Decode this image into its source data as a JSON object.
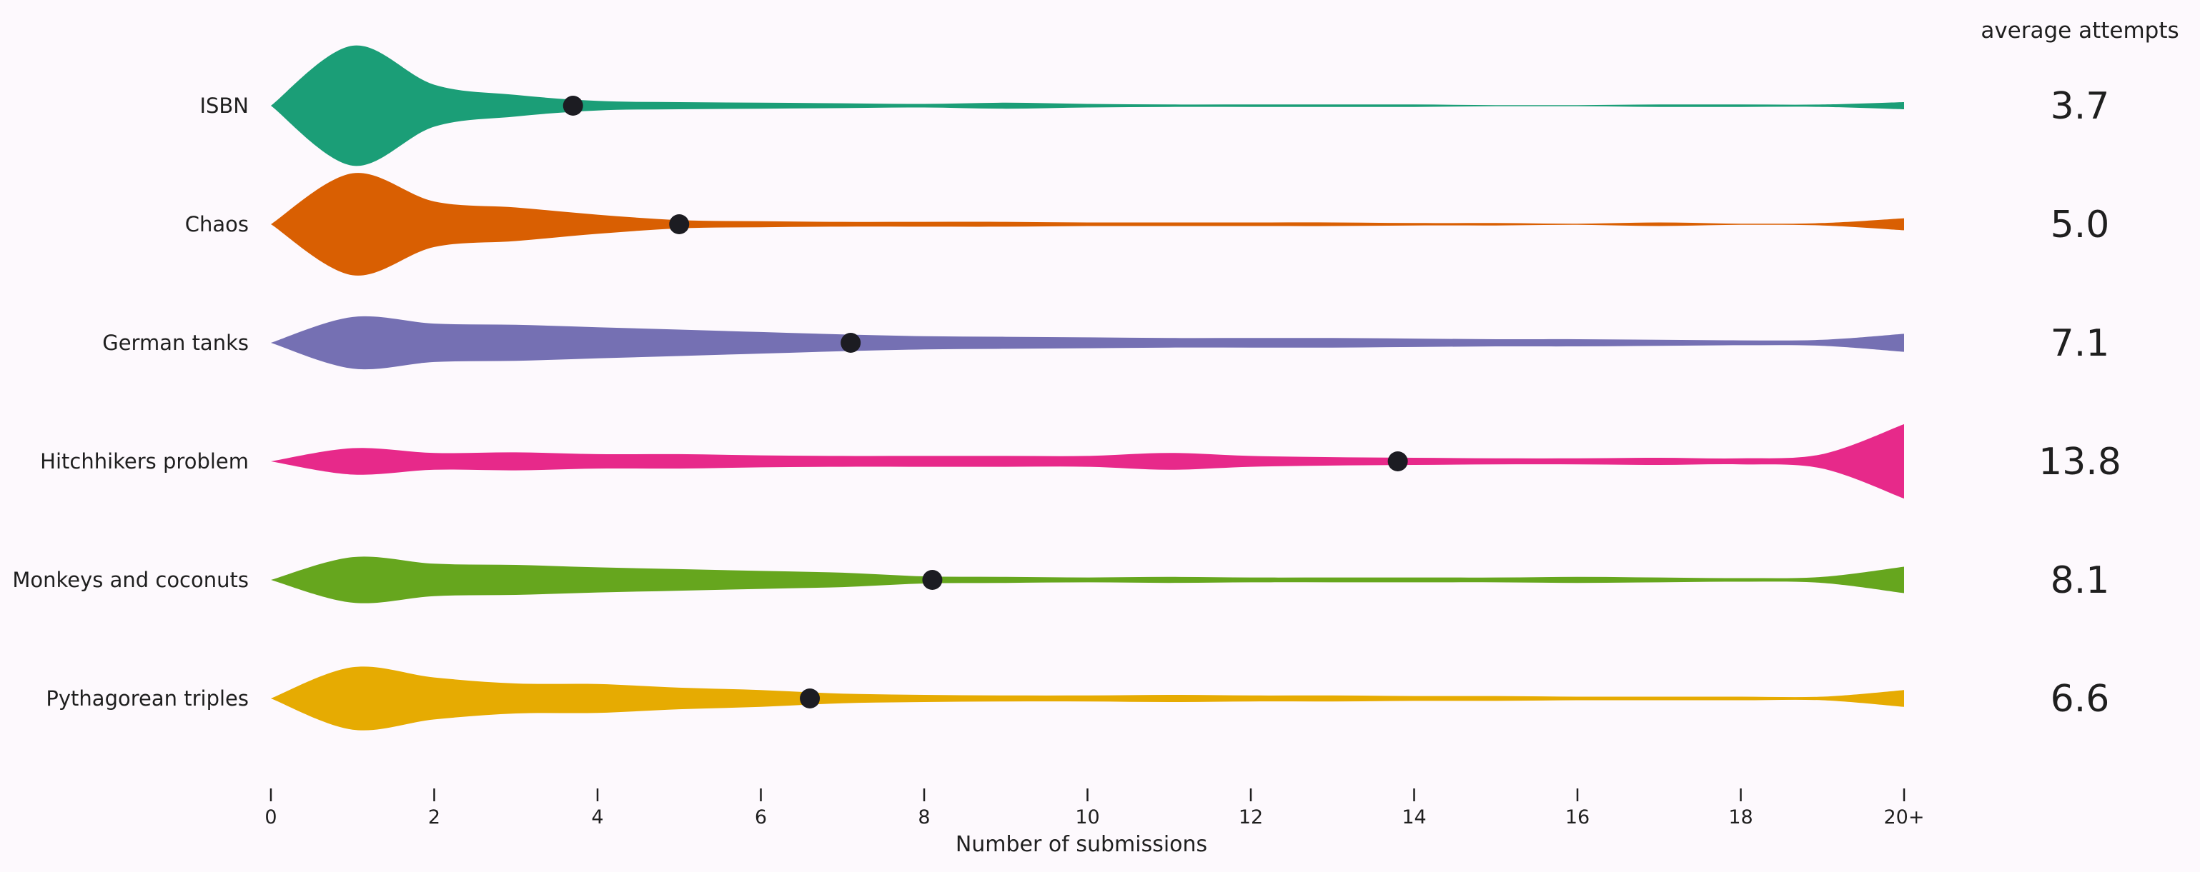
{
  "chart_data": {
    "type": "violin",
    "orientation": "horizontal",
    "xlabel": "Number of submissions",
    "xlim": [
      0,
      20
    ],
    "x_ticks": [
      0,
      2,
      4,
      6,
      8,
      10,
      12,
      14,
      16,
      18,
      20
    ],
    "x_tick_labels": [
      "0",
      "2",
      "4",
      "6",
      "8",
      "10",
      "12",
      "14",
      "16",
      "18",
      "20+"
    ],
    "average_header": "average attempts",
    "series": [
      {
        "name": "ISBN",
        "color": "#1b9e77",
        "average": 3.7,
        "average_label": "3.7",
        "density": [
          0,
          1.0,
          0.35,
          0.18,
          0.08,
          0.06,
          0.05,
          0.04,
          0.03,
          0.05,
          0.03,
          0.02,
          0.02,
          0.02,
          0.02,
          0.01,
          0.01,
          0.02,
          0.02,
          0.02,
          0.06
        ]
      },
      {
        "name": "Chaos",
        "color": "#d95f02",
        "average": 5.0,
        "average_label": "5.0",
        "density": [
          0,
          0.85,
          0.38,
          0.28,
          0.16,
          0.07,
          0.05,
          0.04,
          0.04,
          0.04,
          0.03,
          0.03,
          0.03,
          0.03,
          0.02,
          0.02,
          0.01,
          0.03,
          0.01,
          0.02,
          0.1
        ]
      },
      {
        "name": "German tanks",
        "color": "#7570b3",
        "average": 7.1,
        "average_label": "7.1",
        "density": [
          0,
          0.43,
          0.32,
          0.3,
          0.26,
          0.22,
          0.18,
          0.14,
          0.11,
          0.1,
          0.09,
          0.08,
          0.08,
          0.08,
          0.07,
          0.06,
          0.06,
          0.05,
          0.04,
          0.05,
          0.15
        ]
      },
      {
        "name": "Hitchhikers problem",
        "color": "#e7298a",
        "average": 13.8,
        "average_label": "13.8",
        "density": [
          0,
          0.22,
          0.14,
          0.15,
          0.12,
          0.12,
          0.1,
          0.09,
          0.09,
          0.09,
          0.09,
          0.14,
          0.09,
          0.07,
          0.06,
          0.05,
          0.05,
          0.06,
          0.05,
          0.12,
          0.62
        ]
      },
      {
        "name": "Monkeys and coconuts",
        "color": "#66a61e",
        "average": 8.1,
        "average_label": "8.1",
        "density": [
          0,
          0.38,
          0.27,
          0.25,
          0.21,
          0.18,
          0.15,
          0.12,
          0.06,
          0.05,
          0.04,
          0.05,
          0.04,
          0.04,
          0.04,
          0.04,
          0.05,
          0.04,
          0.03,
          0.05,
          0.22
        ]
      },
      {
        "name": "Pythagorean triples",
        "color": "#e6ab02",
        "average": 6.6,
        "average_label": "6.6",
        "density": [
          0,
          0.52,
          0.35,
          0.25,
          0.24,
          0.18,
          0.14,
          0.08,
          0.06,
          0.05,
          0.05,
          0.06,
          0.05,
          0.05,
          0.04,
          0.04,
          0.03,
          0.03,
          0.03,
          0.03,
          0.14
        ]
      }
    ]
  }
}
